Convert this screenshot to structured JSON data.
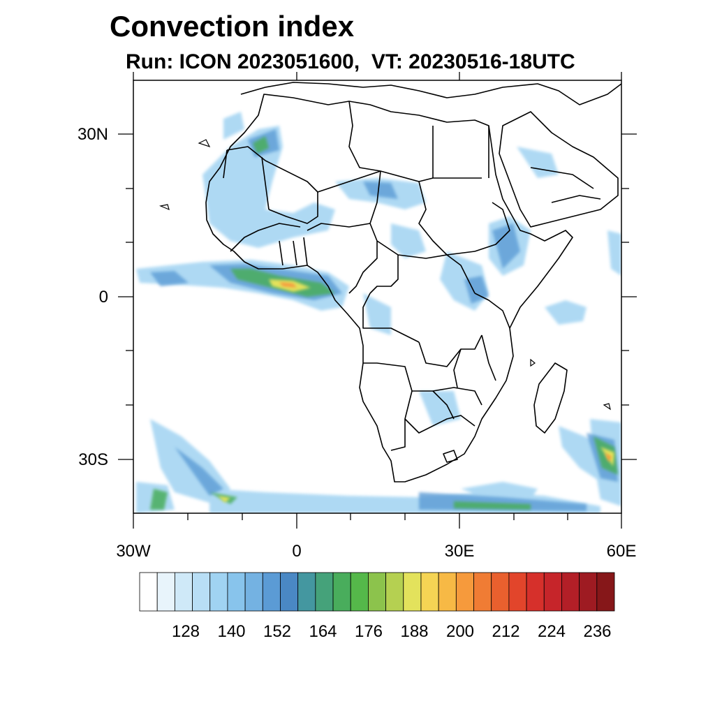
{
  "title": "Convection index",
  "subtitle": "Run: ICON 2023051600,  VT: 20230516-18UTC",
  "axes": {
    "lat_ticks": [
      {
        "label": "30N",
        "value": 30
      },
      {
        "label": "0",
        "value": 0
      },
      {
        "label": "30S",
        "value": -30
      }
    ],
    "lon_ticks": [
      {
        "label": "30W",
        "value": -30
      },
      {
        "label": "0",
        "value": 0
      },
      {
        "label": "30E",
        "value": 30
      },
      {
        "label": "60E",
        "value": 60
      }
    ],
    "lon_range": [
      -30,
      60
    ],
    "lat_range": [
      -40,
      40
    ]
  },
  "colorbar": {
    "labels": [
      "128",
      "140",
      "152",
      "164",
      "176",
      "188",
      "200",
      "212",
      "224",
      "236"
    ],
    "colors": [
      "#ffffff",
      "#e8f4fb",
      "#cfe9f8",
      "#b8def5",
      "#a0d3f2",
      "#88c4ec",
      "#74b2e2",
      "#5b9bd5",
      "#4a88c4",
      "#4497a0",
      "#45a27a",
      "#49ad5c",
      "#55b84a",
      "#8cc34c",
      "#b5d051",
      "#e3e25c",
      "#f5d454",
      "#f7b945",
      "#f69a3c",
      "#f07c34",
      "#e9602e",
      "#e2452b",
      "#d6302b",
      "#c6252a",
      "#b31f27",
      "#9e1b22",
      "#861719"
    ]
  }
}
